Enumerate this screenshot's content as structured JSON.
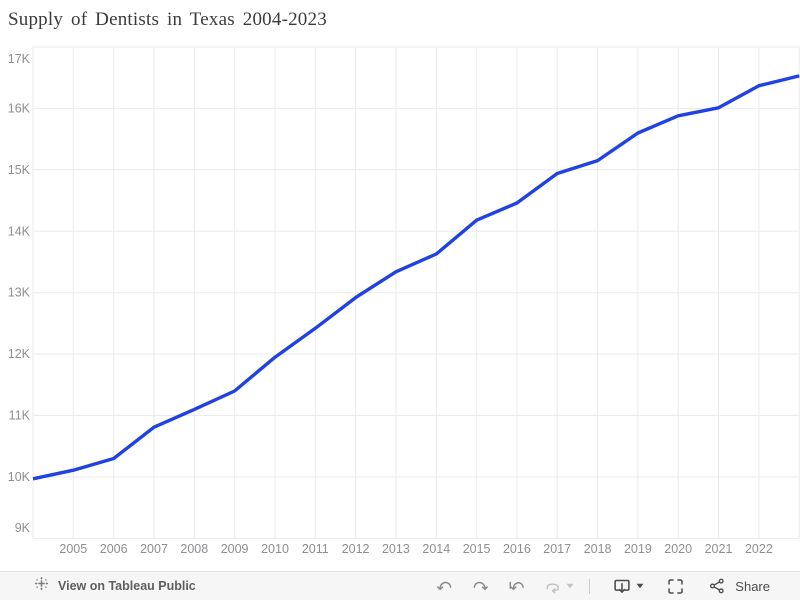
{
  "page": {
    "title": "Supply of Dentists in Texas 2004-2023"
  },
  "chart_data": {
    "type": "line",
    "title": "Supply of Dentists in Texas 2004-2023",
    "x": [
      2004,
      2005,
      2006,
      2007,
      2008,
      2009,
      2010,
      2011,
      2012,
      2013,
      2014,
      2015,
      2016,
      2017,
      2018,
      2019,
      2020,
      2021,
      2022,
      2023
    ],
    "series": [
      {
        "name": "Supply of Dentists",
        "color": "#2042e2",
        "values": [
          9970,
          10110,
          10300,
          10810,
          11100,
          11400,
          11950,
          12420,
          12920,
          13340,
          13630,
          14180,
          14460,
          14940,
          15150,
          15600,
          15880,
          16010,
          16370,
          16530
        ]
      }
    ],
    "xlim": [
      2004,
      2023
    ],
    "ylim": [
      9000,
      17000
    ],
    "x_ticks": [
      2005,
      2006,
      2007,
      2008,
      2009,
      2010,
      2011,
      2012,
      2013,
      2014,
      2015,
      2016,
      2017,
      2018,
      2019,
      2020,
      2021,
      2022
    ],
    "y_ticks": [
      {
        "value": 9000,
        "label": "9K"
      },
      {
        "value": 10000,
        "label": "10K"
      },
      {
        "value": 11000,
        "label": "11K"
      },
      {
        "value": 12000,
        "label": "12K"
      },
      {
        "value": 13000,
        "label": "13K"
      },
      {
        "value": 14000,
        "label": "14K"
      },
      {
        "value": 15000,
        "label": "15K"
      },
      {
        "value": 16000,
        "label": "16K"
      },
      {
        "value": 17000,
        "label": "17K"
      }
    ],
    "grid": true,
    "legend_position": "none"
  },
  "styles": {
    "line_color": "#2042e2",
    "grid_color": "#ebebef",
    "axis_label_color": "#8e8e93",
    "title_color": "#3b3b3b",
    "toolbar_bg": "#f6f6f6",
    "toolbar_border": "#e2e2e2",
    "icon_gray": "#8c8c8c",
    "icon_disabled": "#c2c2c2",
    "icon_dark": "#4c4c4c"
  },
  "toolbar": {
    "view_on_tableau_label": "View on Tableau Public",
    "share_label": "Share",
    "icons": [
      "tableau-logo-icon",
      "undo-icon",
      "redo-icon",
      "reset-icon",
      "refresh-icon",
      "caret-down-icon",
      "download-icon",
      "fullscreen-icon",
      "share-icon"
    ]
  }
}
